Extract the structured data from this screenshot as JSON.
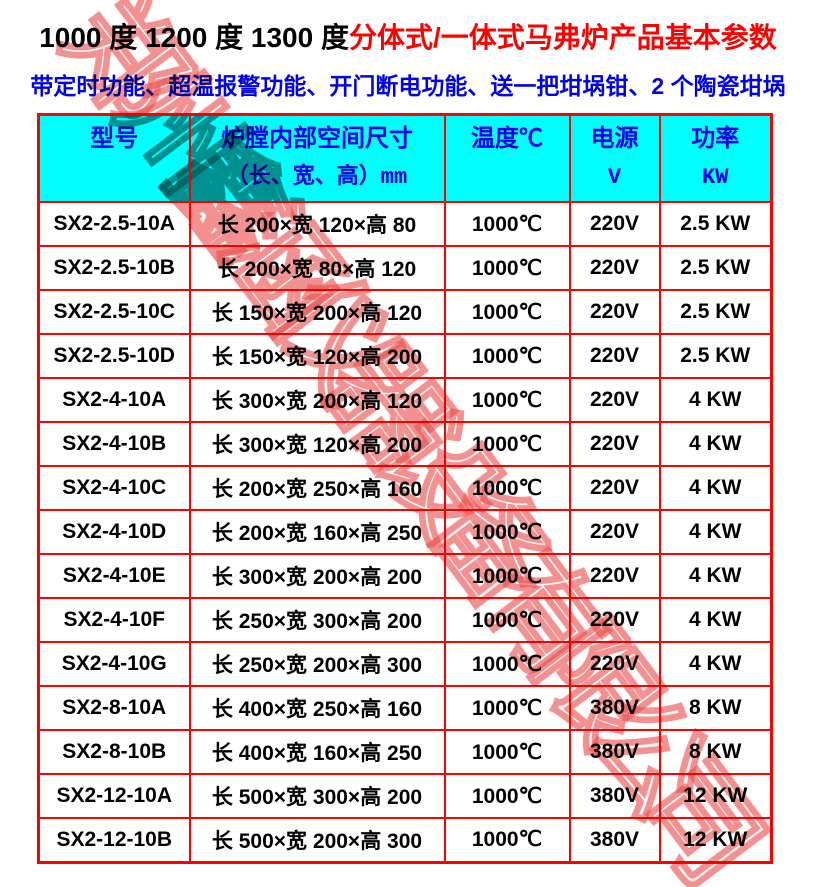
{
  "title": {
    "black_part": "1000 度 1200 度 1300 度",
    "red_part": "分体式/一体式马弗炉产品基本参数"
  },
  "subtitle": {
    "text": "带定时功能、超温报警功能、开门断电功能、送一把坩埚钳、2 个陶瓷坩埚"
  },
  "watermark": {
    "text": "郑州鑫涵仪器设备有限公司"
  },
  "table": {
    "columns": [
      {
        "line1": "型号",
        "line2": "",
        "mono": false
      },
      {
        "line1": "炉膛内部空间尺寸",
        "line2": "（长、宽、高）mm",
        "mono": true
      },
      {
        "line1": "温度℃",
        "line2": "",
        "mono": false
      },
      {
        "line1": "电源",
        "line2": "V",
        "mono": true
      },
      {
        "line1": "功率",
        "line2": "KW",
        "mono": true
      }
    ],
    "rows": [
      {
        "model": "SX2-2.5-10A",
        "size": "长 200×宽 120×高 80",
        "temp": "1000℃",
        "voltage": "220V",
        "power": "2.5 KW"
      },
      {
        "model": "SX2-2.5-10B",
        "size": "长 200×宽 80×高 120",
        "temp": "1000℃",
        "voltage": "220V",
        "power": "2.5 KW"
      },
      {
        "model": "SX2-2.5-10C",
        "size": "长 150×宽 200×高 120",
        "temp": "1000℃",
        "voltage": "220V",
        "power": "2.5 KW"
      },
      {
        "model": "SX2-2.5-10D",
        "size": "长 150×宽 120×高 200",
        "temp": "1000℃",
        "voltage": "220V",
        "power": "2.5 KW"
      },
      {
        "model": "SX2-4-10A",
        "size": "长 300×宽 200×高 120",
        "temp": "1000℃",
        "voltage": "220V",
        "power": "4 KW"
      },
      {
        "model": "SX2-4-10B",
        "size": "长 300×宽 120×高 200",
        "temp": "1000℃",
        "voltage": "220V",
        "power": "4 KW"
      },
      {
        "model": "SX2-4-10C",
        "size": "长 200×宽 250×高 160",
        "temp": "1000℃",
        "voltage": "220V",
        "power": "4 KW"
      },
      {
        "model": "SX2-4-10D",
        "size": "长 200×宽 160×高 250",
        "temp": "1000℃",
        "voltage": "220V",
        "power": "4 KW"
      },
      {
        "model": "SX2-4-10E",
        "size": "长 300×宽 200×高 200",
        "temp": "1000℃",
        "voltage": "220V",
        "power": "4 KW"
      },
      {
        "model": "SX2-4-10F",
        "size": "长 250×宽 300×高 200",
        "temp": "1000℃",
        "voltage": "220V",
        "power": "4 KW"
      },
      {
        "model": "SX2-4-10G",
        "size": "长 250×宽 200×高 300",
        "temp": "1000℃",
        "voltage": "220V",
        "power": "4 KW"
      },
      {
        "model": "SX2-8-10A",
        "size": "长 400×宽 250×高 160",
        "temp": "1000℃",
        "voltage": "380V",
        "power": "8 KW"
      },
      {
        "model": "SX2-8-10B",
        "size": "长 400×宽 160×高 250",
        "temp": "1000℃",
        "voltage": "380V",
        "power": "8 KW"
      },
      {
        "model": "SX2-12-10A",
        "size": "长 500×宽 300×高 200",
        "temp": "1000℃",
        "voltage": "380V",
        "power": "12 KW"
      },
      {
        "model": "SX2-12-10B",
        "size": "长 500×宽 200×高 300",
        "temp": "1000℃",
        "voltage": "380V",
        "power": "12 KW"
      }
    ]
  },
  "colors": {
    "border": "#FF0000",
    "header_bg": "#00FFFF",
    "header_text": "#0000EE",
    "title_red": "#FF0000",
    "subtitle_blue": "#0000EE",
    "watermark_red": "rgba(235,80,80,0.62)"
  }
}
